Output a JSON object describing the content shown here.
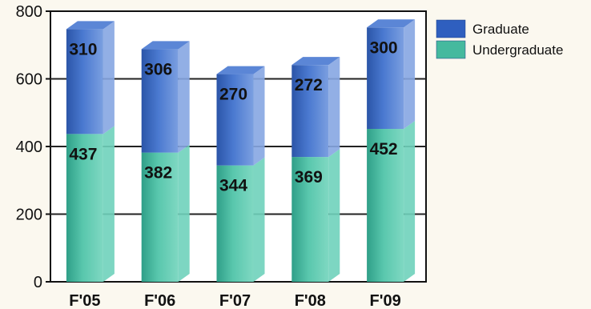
{
  "chart_data": {
    "type": "bar",
    "stacked": true,
    "style": "3d-columns",
    "categories": [
      "F'05",
      "F'06",
      "F'07",
      "F'08",
      "F'09"
    ],
    "series": [
      {
        "name": "Undergraduate",
        "values": [
          437,
          382,
          344,
          369,
          452
        ],
        "color": "#3fb89e"
      },
      {
        "name": "Graduate",
        "values": [
          310,
          306,
          270,
          272,
          300
        ],
        "color": "#3d6bc4"
      }
    ],
    "ylim": [
      0,
      800
    ],
    "yticks": [
      "0",
      "200",
      "400",
      "600",
      "800"
    ],
    "grid": true,
    "legend": "top-right",
    "legend_order": [
      "Graduate",
      "Undergraduate"
    ]
  }
}
